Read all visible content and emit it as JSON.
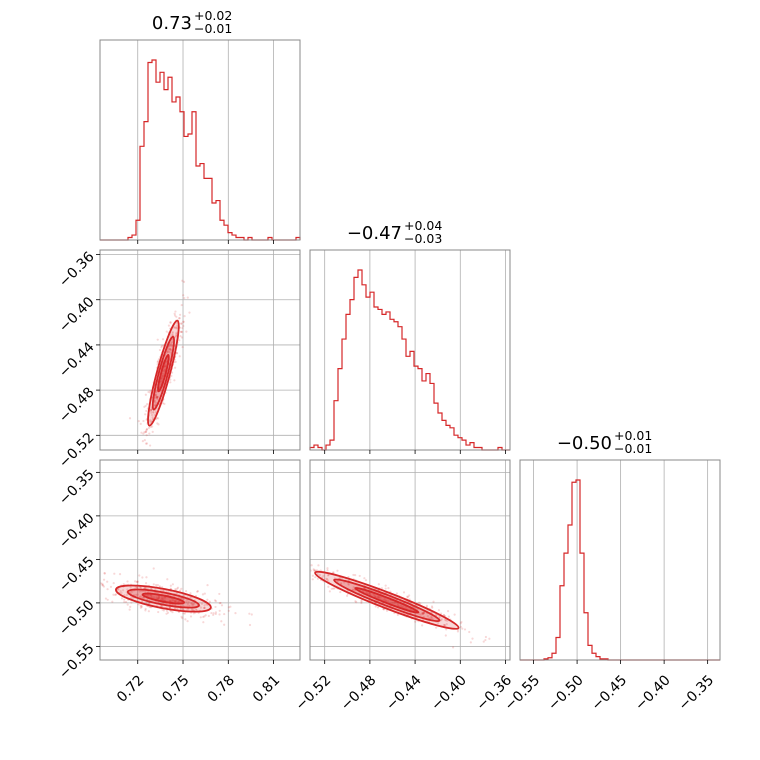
{
  "chart_data": {
    "type": "corner",
    "color": "#d62728",
    "grid": true,
    "parameters": [
      {
        "title": {
          "value": "0.73",
          "plus": "+0.02",
          "minus": "−0.01"
        },
        "range": [
          0.695,
          0.8275
        ],
        "ticks": [
          0.72,
          0.75,
          0.78,
          0.81
        ],
        "tick_labels": [
          "0.72",
          "0.75",
          "0.78",
          "0.81"
        ],
        "hist": [
          0,
          0,
          0,
          0,
          0,
          0,
          0,
          1,
          2,
          8,
          38,
          48,
          72,
          73,
          64,
          68,
          61,
          66,
          56,
          58,
          52,
          42,
          43,
          52,
          30,
          31,
          25,
          25,
          15,
          16,
          8,
          6,
          3,
          2,
          1,
          1,
          0,
          1,
          0,
          0,
          0,
          0,
          1,
          0,
          0,
          0,
          0,
          0,
          0,
          1
        ]
      },
      {
        "title": {
          "value": "−0.47",
          "plus": "+0.04",
          "minus": "−0.03"
        },
        "range": [
          -0.533,
          -0.356
        ],
        "ticks": [
          -0.52,
          -0.48,
          -0.44,
          -0.4,
          -0.36
        ],
        "tick_labels": [
          "−0.52",
          "−0.48",
          "−0.44",
          "−0.40",
          "−0.36"
        ],
        "hist": [
          1,
          2,
          1,
          0,
          2,
          4,
          20,
          33,
          45,
          55,
          61,
          70,
          73,
          67,
          62,
          64,
          58,
          57,
          55,
          56,
          53,
          52,
          50,
          45,
          38,
          40,
          34,
          33,
          28,
          31,
          27,
          19,
          15,
          12,
          10,
          9,
          6,
          5,
          4,
          2,
          3,
          1,
          1,
          0,
          0,
          0,
          0,
          1,
          0,
          0
        ]
      },
      {
        "title": {
          "value": "−0.50",
          "plus": "+0.01",
          "minus": "−0.01"
        },
        "range": [
          -0.5656,
          -0.3358
        ],
        "ticks": [
          -0.55,
          -0.5,
          -0.45,
          -0.4,
          -0.35
        ],
        "tick_labels": [
          "−0.55",
          "−0.50",
          "−0.45",
          "−0.40",
          "−0.35"
        ],
        "hist": [
          0,
          0,
          0,
          0,
          0,
          0,
          1,
          2,
          6,
          20,
          66,
          95,
          120,
          158,
          160,
          95,
          42,
          13,
          6,
          3,
          1,
          1,
          0,
          0,
          0,
          0,
          0,
          0,
          0,
          0,
          0,
          0,
          0,
          0,
          0,
          0,
          0,
          0,
          0,
          0,
          0,
          0,
          0,
          0,
          0,
          0,
          0,
          0,
          0,
          0
        ]
      }
    ],
    "pairs": [
      {
        "x": 0,
        "y": 1,
        "center": [
          0.737,
          -0.465
        ],
        "contours": [
          {
            "level": "1sigma",
            "half_major": 0.0125,
            "half_minor": 0.002
          },
          {
            "level": "2sigma",
            "half_major": 0.025,
            "half_minor": 0.004
          },
          {
            "level": "3sigma",
            "half_major": 0.036,
            "half_minor": 0.0058
          }
        ],
        "y_ticks": [
          -0.36,
          -0.4,
          -0.44,
          -0.48,
          -0.52
        ],
        "y_tick_labels": [
          "−0.36",
          "−0.40",
          "−0.44",
          "−0.48",
          "−0.52"
        ]
      },
      {
        "x": 0,
        "y": 2,
        "center": [
          0.737,
          -0.495
        ],
        "contours": [
          {
            "level": "1sigma",
            "half_major": 0.014,
            "half_minor": 0.0035
          },
          {
            "level": "2sigma",
            "half_major": 0.024,
            "half_minor": 0.007
          },
          {
            "level": "3sigma",
            "half_major": 0.032,
            "half_minor": 0.011
          }
        ],
        "y_ticks": [
          -0.35,
          -0.4,
          -0.45,
          -0.5,
          -0.55
        ],
        "y_tick_labels": [
          "−0.35",
          "−0.40",
          "−0.45",
          "−0.50",
          "−0.55"
        ]
      },
      {
        "x": 1,
        "y": 2,
        "center": [
          -0.465,
          -0.497
        ],
        "contours": [
          {
            "level": "1sigma",
            "half_major": 0.03,
            "half_minor": 0.003
          },
          {
            "level": "2sigma",
            "half_major": 0.05,
            "half_minor": 0.006
          },
          {
            "level": "3sigma",
            "half_major": 0.068,
            "half_minor": 0.009
          }
        ]
      }
    ]
  }
}
